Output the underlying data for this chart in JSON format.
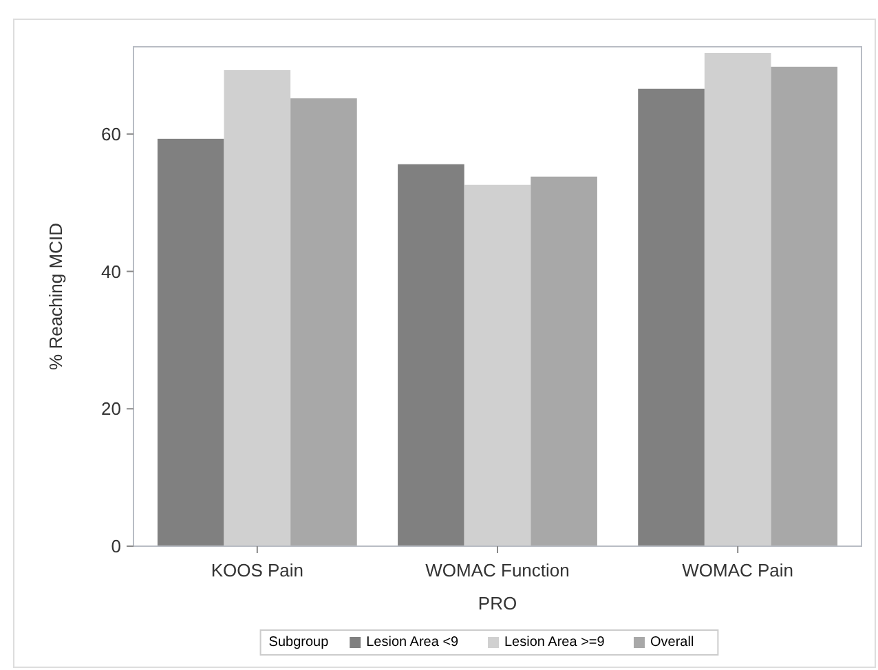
{
  "chart_data": {
    "type": "bar",
    "xlabel": "PRO",
    "ylabel": "% Reaching MCID",
    "legend_title": "Subgroup",
    "categories": [
      "KOOS Pain",
      "WOMAC Function",
      "WOMAC Pain"
    ],
    "series": [
      {
        "name": "Lesion Area <9",
        "color": "#808080",
        "values": [
          59.3,
          55.6,
          66.6
        ]
      },
      {
        "name": "Lesion Area >=9",
        "color": "#d0d0d0",
        "values": [
          69.3,
          52.6,
          71.8
        ]
      },
      {
        "name": "Overall",
        "color": "#a8a8a8",
        "values": [
          65.2,
          53.8,
          69.8
        ]
      }
    ],
    "ylim": [
      0,
      72.7
    ],
    "yticks": [
      0,
      20,
      40,
      60
    ],
    "legend": "bottom",
    "grid": false
  }
}
